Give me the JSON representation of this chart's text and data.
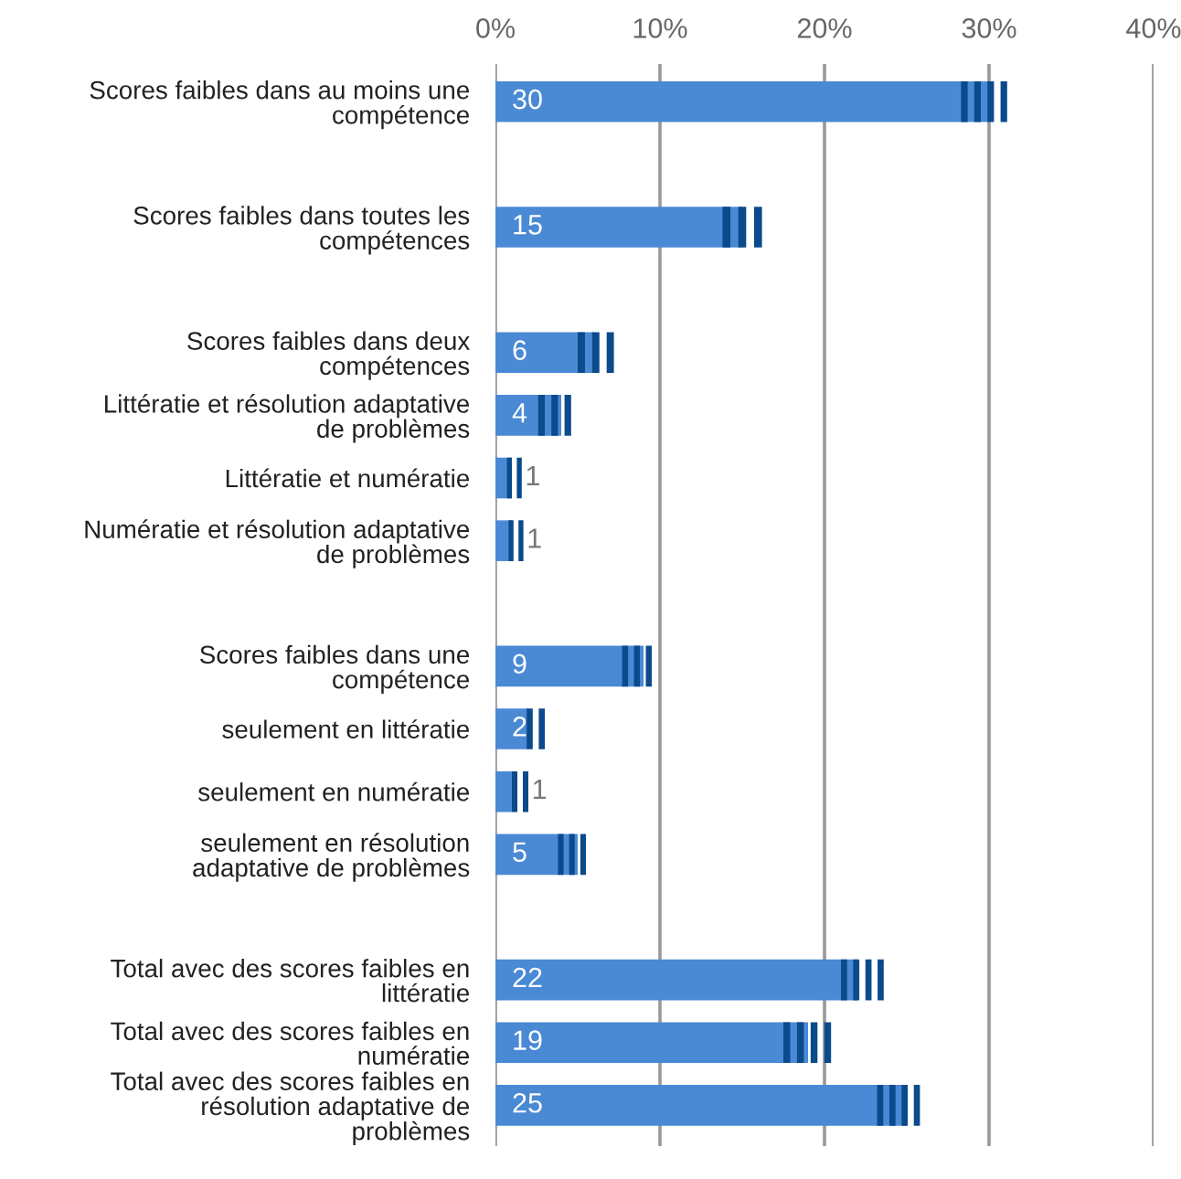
{
  "chart_data": {
    "type": "bar",
    "orientation": "horizontal",
    "categories": [
      "Scores faibles dans au moins une\ncompétence",
      null,
      "Scores faibles dans toutes les\ncompétences",
      null,
      "Scores faibles dans deux\ncompétences",
      "Littératie et résolution adaptative\nde problèmes",
      "Littératie et numératie",
      "Numératie et résolution adaptative\nde problèmes",
      null,
      "Scores faibles dans une\ncompétence",
      "seulement en littératie",
      "seulement en numératie",
      "seulement en résolution\nadaptative de problèmes",
      null,
      "Total avec des scores faibles en\nlittératie",
      "Total avec des scores faibles en\nnumératie",
      "Total avec des scores faibles en\nrésolution adaptative de\nproblèmes"
    ],
    "series": [
      {
        "color": "#4a89d4",
        "values": [
          30,
          null,
          15,
          null,
          6,
          4,
          1,
          1,
          null,
          9,
          2,
          1,
          5,
          null,
          22,
          19,
          25
        ],
        "errors": [
          [
            28.3,
            31.1
          ],
          null,
          [
            13.8,
            16.2
          ],
          null,
          [
            5.0,
            7.2
          ],
          [
            2.6,
            4.6
          ],
          [
            0.7,
            1.6
          ],
          [
            0.8,
            1.7
          ],
          null,
          [
            7.7,
            9.5
          ],
          [
            1.9,
            3.0
          ],
          [
            1.0,
            2.0
          ],
          [
            3.8,
            5.5
          ],
          null,
          [
            21.0,
            23.6
          ],
          [
            17.5,
            20.4
          ],
          [
            23.2,
            25.8
          ]
        ]
      }
    ],
    "xlim": [
      0,
      40
    ],
    "xticks": [
      {
        "value": 0,
        "label": "0%"
      },
      {
        "value": 10,
        "label": "10%"
      },
      {
        "value": 20,
        "label": "20%"
      },
      {
        "value": 30,
        "label": "30%"
      },
      {
        "value": 40,
        "label": "40%"
      }
    ],
    "grid": "x",
    "data_labels": true
  }
}
